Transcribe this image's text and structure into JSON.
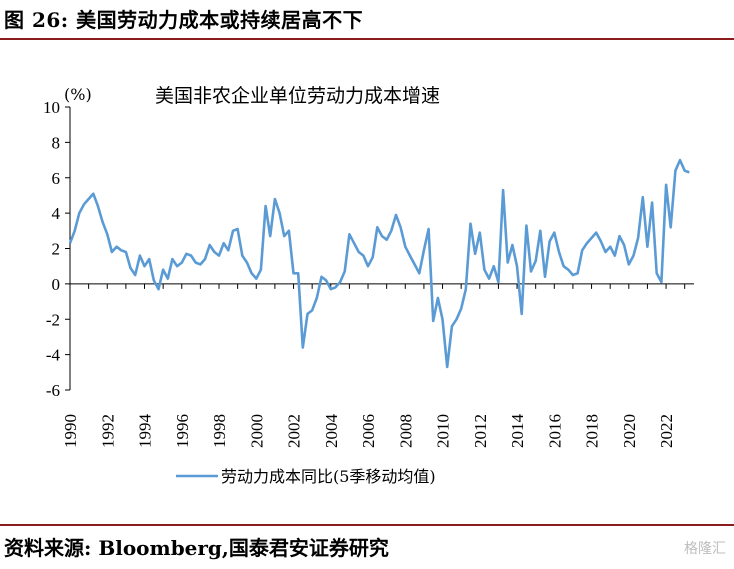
{
  "figure_title": "图 26:  美国劳动力成本或持续居高不下",
  "source": "资料来源:  Bloomberg,国泰君安证券研究",
  "watermark": "格隆汇",
  "colors": {
    "series": "#5b9bd5",
    "rule": "#8a1c1c"
  },
  "chart_data": {
    "type": "line",
    "title": "美国非农企业单位劳动力成本增速",
    "unit_label": "(%)",
    "ylim": [
      -6,
      10
    ],
    "y_ticks": [
      "10",
      "8",
      "6",
      "4",
      "2",
      "0",
      "-2",
      "-4",
      "-6"
    ],
    "x_ticks": [
      "1990",
      "1992",
      "1994",
      "1996",
      "1998",
      "2000",
      "2002",
      "2004",
      "2006",
      "2008",
      "2010",
      "2012",
      "2014",
      "2016",
      "2018",
      "2020",
      "2022"
    ],
    "grid": false,
    "legend_position": "bottom",
    "series": [
      {
        "name": "劳动力成本同比(5季移动均值)",
        "color": "#5b9bd5",
        "points": [
          [
            1990.0,
            2.3
          ],
          [
            1990.25,
            3.0
          ],
          [
            1990.5,
            4.0
          ],
          [
            1990.75,
            4.5
          ],
          [
            1991.0,
            4.8
          ],
          [
            1991.25,
            5.1
          ],
          [
            1991.5,
            4.4
          ],
          [
            1991.75,
            3.5
          ],
          [
            1992.0,
            2.8
          ],
          [
            1992.25,
            1.8
          ],
          [
            1992.5,
            2.1
          ],
          [
            1992.75,
            1.9
          ],
          [
            1993.0,
            1.8
          ],
          [
            1993.25,
            0.9
          ],
          [
            1993.5,
            0.5
          ],
          [
            1993.75,
            1.6
          ],
          [
            1994.0,
            1.0
          ],
          [
            1994.25,
            1.4
          ],
          [
            1994.5,
            0.2
          ],
          [
            1994.75,
            -0.3
          ],
          [
            1995.0,
            0.8
          ],
          [
            1995.25,
            0.3
          ],
          [
            1995.5,
            1.4
          ],
          [
            1995.75,
            1.0
          ],
          [
            1996.0,
            1.2
          ],
          [
            1996.25,
            1.7
          ],
          [
            1996.5,
            1.6
          ],
          [
            1996.75,
            1.2
          ],
          [
            1997.0,
            1.1
          ],
          [
            1997.25,
            1.4
          ],
          [
            1997.5,
            2.2
          ],
          [
            1997.75,
            1.8
          ],
          [
            1998.0,
            1.6
          ],
          [
            1998.25,
            2.3
          ],
          [
            1998.5,
            1.9
          ],
          [
            1998.75,
            3.0
          ],
          [
            1999.0,
            3.1
          ],
          [
            1999.25,
            1.6
          ],
          [
            1999.5,
            1.2
          ],
          [
            1999.75,
            0.6
          ],
          [
            2000.0,
            0.3
          ],
          [
            2000.25,
            0.8
          ],
          [
            2000.5,
            4.4
          ],
          [
            2000.75,
            2.7
          ],
          [
            2001.0,
            4.8
          ],
          [
            2001.25,
            4.0
          ],
          [
            2001.5,
            2.7
          ],
          [
            2001.75,
            3.0
          ],
          [
            2002.0,
            0.6
          ],
          [
            2002.25,
            0.6
          ],
          [
            2002.5,
            -3.6
          ],
          [
            2002.75,
            -1.7
          ],
          [
            2003.0,
            -1.5
          ],
          [
            2003.25,
            -0.8
          ],
          [
            2003.5,
            0.4
          ],
          [
            2003.75,
            0.2
          ],
          [
            2004.0,
            -0.3
          ],
          [
            2004.25,
            -0.2
          ],
          [
            2004.5,
            0.1
          ],
          [
            2004.75,
            0.7
          ],
          [
            2005.0,
            2.8
          ],
          [
            2005.25,
            2.3
          ],
          [
            2005.5,
            1.8
          ],
          [
            2005.75,
            1.6
          ],
          [
            2006.0,
            1.0
          ],
          [
            2006.25,
            1.5
          ],
          [
            2006.5,
            3.2
          ],
          [
            2006.75,
            2.7
          ],
          [
            2007.0,
            2.5
          ],
          [
            2007.25,
            3.0
          ],
          [
            2007.5,
            3.9
          ],
          [
            2007.75,
            3.2
          ],
          [
            2008.0,
            2.1
          ],
          [
            2008.25,
            1.6
          ],
          [
            2008.5,
            1.1
          ],
          [
            2008.75,
            0.6
          ],
          [
            2009.0,
            1.9
          ],
          [
            2009.25,
            3.1
          ],
          [
            2009.5,
            -2.1
          ],
          [
            2009.75,
            -0.8
          ],
          [
            2010.0,
            -2.0
          ],
          [
            2010.25,
            -4.7
          ],
          [
            2010.5,
            -2.4
          ],
          [
            2010.75,
            -2.0
          ],
          [
            2011.0,
            -1.4
          ],
          [
            2011.25,
            -0.3
          ],
          [
            2011.5,
            3.4
          ],
          [
            2011.75,
            1.7
          ],
          [
            2012.0,
            2.9
          ],
          [
            2012.25,
            0.8
          ],
          [
            2012.5,
            0.3
          ],
          [
            2012.75,
            1.0
          ],
          [
            2013.0,
            0.1
          ],
          [
            2013.25,
            5.3
          ],
          [
            2013.5,
            1.2
          ],
          [
            2013.75,
            2.2
          ],
          [
            2014.0,
            1.0
          ],
          [
            2014.25,
            -1.7
          ],
          [
            2014.5,
            3.3
          ],
          [
            2014.75,
            0.7
          ],
          [
            2015.0,
            1.3
          ],
          [
            2015.25,
            3.0
          ],
          [
            2015.5,
            0.4
          ],
          [
            2015.75,
            2.4
          ],
          [
            2016.0,
            2.9
          ],
          [
            2016.25,
            1.8
          ],
          [
            2016.5,
            1.0
          ],
          [
            2016.75,
            0.8
          ],
          [
            2017.0,
            0.5
          ],
          [
            2017.25,
            0.6
          ],
          [
            2017.5,
            1.9
          ],
          [
            2017.75,
            2.3
          ],
          [
            2018.0,
            2.6
          ],
          [
            2018.25,
            2.9
          ],
          [
            2018.5,
            2.4
          ],
          [
            2018.75,
            1.8
          ],
          [
            2019.0,
            2.1
          ],
          [
            2019.25,
            1.6
          ],
          [
            2019.5,
            2.7
          ],
          [
            2019.75,
            2.2
          ],
          [
            2020.0,
            1.1
          ],
          [
            2020.25,
            1.6
          ],
          [
            2020.5,
            2.6
          ],
          [
            2020.75,
            4.9
          ],
          [
            2021.0,
            2.1
          ],
          [
            2021.25,
            4.6
          ],
          [
            2021.5,
            0.6
          ],
          [
            2021.75,
            0.1
          ],
          [
            2022.0,
            5.6
          ],
          [
            2022.25,
            3.2
          ],
          [
            2022.5,
            6.4
          ],
          [
            2022.75,
            7.0
          ],
          [
            2023.0,
            6.4
          ],
          [
            2023.25,
            6.3
          ]
        ]
      }
    ]
  }
}
